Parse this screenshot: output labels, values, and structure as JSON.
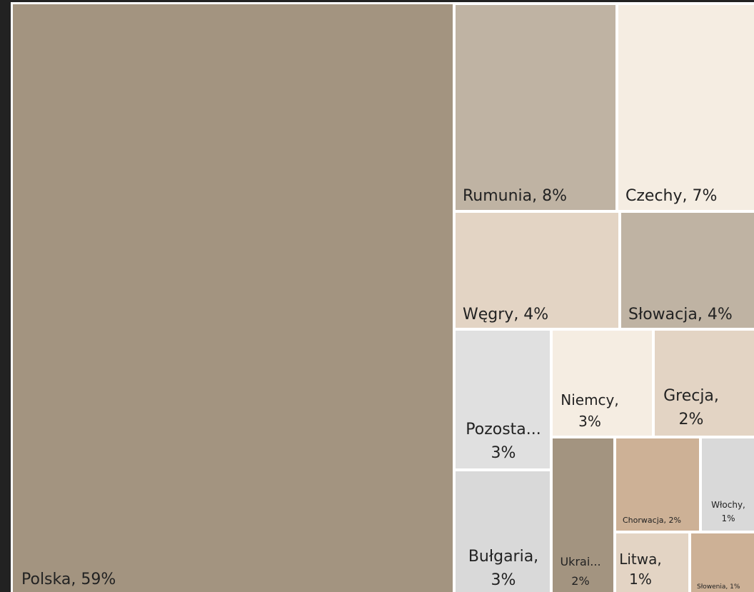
{
  "chart_data": {
    "type": "treemap",
    "labels": [
      "Polska, 59%",
      "Rumunia, 8%",
      "Czechy, 7%",
      "Węgry, 4%",
      "Słowacja, 4%",
      "Pozosta... 3%",
      "Niemcy, 3%",
      "Grecja, 2%",
      "Bułgaria, 3%",
      "Ukrai... 2%",
      "Chorwacja, 2%",
      "Włochy, 1%",
      "Litwa, 1%",
      "Słowenia, 1%"
    ],
    "values": [
      59,
      8,
      7,
      4,
      4,
      3,
      3,
      2,
      3,
      2,
      2,
      1,
      1,
      1
    ],
    "colors": [
      "#a39480",
      "#bfb3a3",
      "#f5ede2",
      "#e3d4c4",
      "#bfb3a3",
      "#e0e0e0",
      "#f5ede2",
      "#e3d4c4",
      "#d9d9d9",
      "#a39480",
      "#cdb196",
      "#d9d9d9",
      "#e3d4c4",
      "#cdb196"
    ]
  }
}
